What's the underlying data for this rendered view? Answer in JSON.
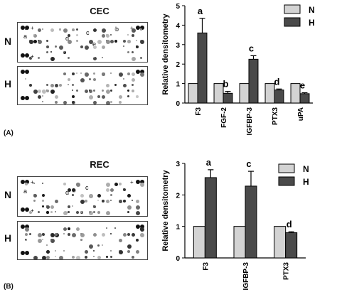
{
  "panels": [
    {
      "label": "(A)",
      "blot_title": "CEC",
      "rows": [
        "N",
        "H"
      ],
      "spot_letters": [
        "a",
        "d",
        "c",
        "b",
        "e"
      ]
    },
    {
      "label": "(B)",
      "blot_title": "REC",
      "rows": [
        "N",
        "H"
      ],
      "spot_letters": [
        "a",
        "d",
        "c"
      ]
    }
  ],
  "colors": {
    "N": "#d3d3d3",
    "H": "#4a4a4a"
  },
  "chart_data": [
    {
      "type": "bar",
      "categories": [
        "F3",
        "FGF-2",
        "IGFBP-3",
        "PTX3",
        "uPA"
      ],
      "series": [
        {
          "name": "N",
          "values": [
            1,
            1,
            1,
            1,
            1
          ]
        },
        {
          "name": "H",
          "values": [
            3.6,
            0.5,
            2.25,
            0.67,
            0.48
          ]
        }
      ],
      "error_bars_H": [
        0.75,
        0.1,
        0.18,
        0.05,
        0.05
      ],
      "annotations": [
        "a",
        "b",
        "c",
        "d",
        "e"
      ],
      "ylabel": "Relative densitometry",
      "yticks": [
        0,
        1,
        2,
        3,
        4,
        5
      ],
      "ylim": [
        0,
        5
      ],
      "legend": "top-right"
    },
    {
      "type": "bar",
      "categories": [
        "F3",
        "IGFBP-3",
        "PTX3"
      ],
      "series": [
        {
          "name": "N",
          "values": [
            1,
            1,
            1
          ]
        },
        {
          "name": "H",
          "values": [
            2.55,
            2.28,
            0.8
          ]
        }
      ],
      "error_bars_H": [
        0.25,
        0.47,
        0.03
      ],
      "annotations": [
        "a",
        "c",
        "d"
      ],
      "ylabel": "Relative densitometry",
      "yticks": [
        0,
        1,
        2,
        3
      ],
      "ylim": [
        0,
        3
      ],
      "legend": "top-right"
    }
  ]
}
